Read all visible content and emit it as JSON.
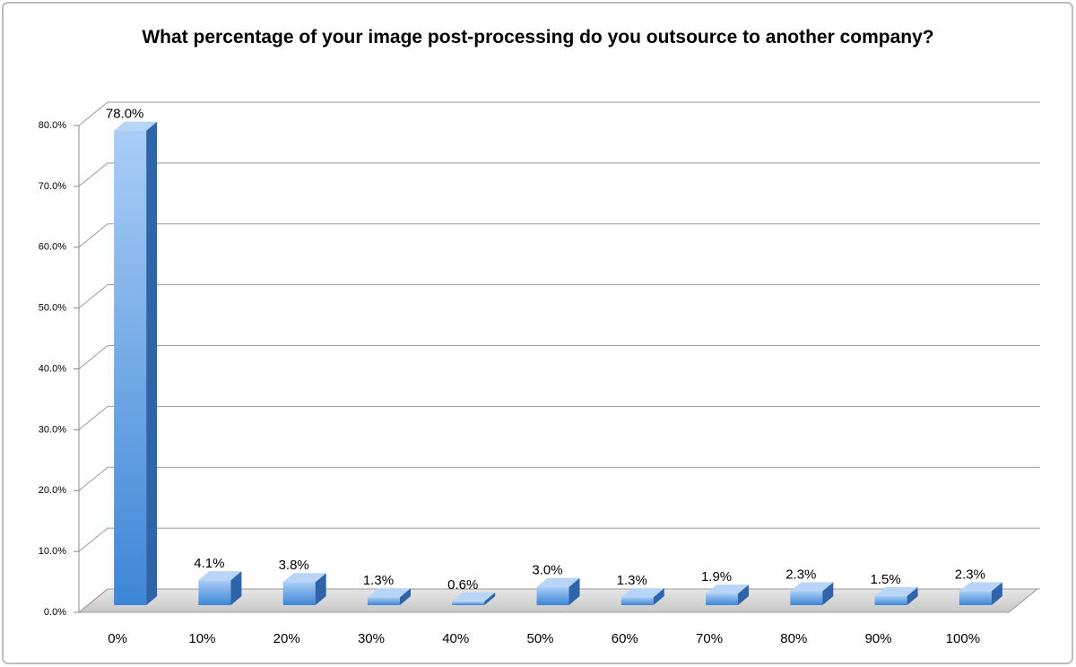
{
  "chart_data": {
    "type": "bar3d",
    "title": "What percentage of your image post-processing do you outsource to another company?",
    "categories": [
      "0%",
      "10%",
      "20%",
      "30%",
      "40%",
      "50%",
      "60%",
      "70%",
      "80%",
      "90%",
      "100%"
    ],
    "values": [
      78.0,
      4.1,
      3.8,
      1.3,
      0.6,
      3.0,
      1.3,
      1.9,
      2.3,
      1.5,
      2.3
    ],
    "value_labels": [
      "78.0%",
      "4.1%",
      "3.8%",
      "1.3%",
      "0.6%",
      "3.0%",
      "1.3%",
      "1.9%",
      "2.3%",
      "1.5%",
      "2.3%"
    ],
    "color": "#4a90e2",
    "ylim": [
      0,
      80
    ],
    "yticks": [
      {
        "value": 0,
        "label": "0.0%"
      },
      {
        "value": 10,
        "label": "10.0%"
      },
      {
        "value": 20,
        "label": "20.0%"
      },
      {
        "value": 30,
        "label": "30.0%"
      },
      {
        "value": 40,
        "label": "40.0%"
      },
      {
        "value": 50,
        "label": "50.0%"
      },
      {
        "value": 60,
        "label": "60.0%"
      },
      {
        "value": 70,
        "label": "70.0%"
      },
      {
        "value": 80,
        "label": "80.0%"
      }
    ],
    "grid": true
  }
}
